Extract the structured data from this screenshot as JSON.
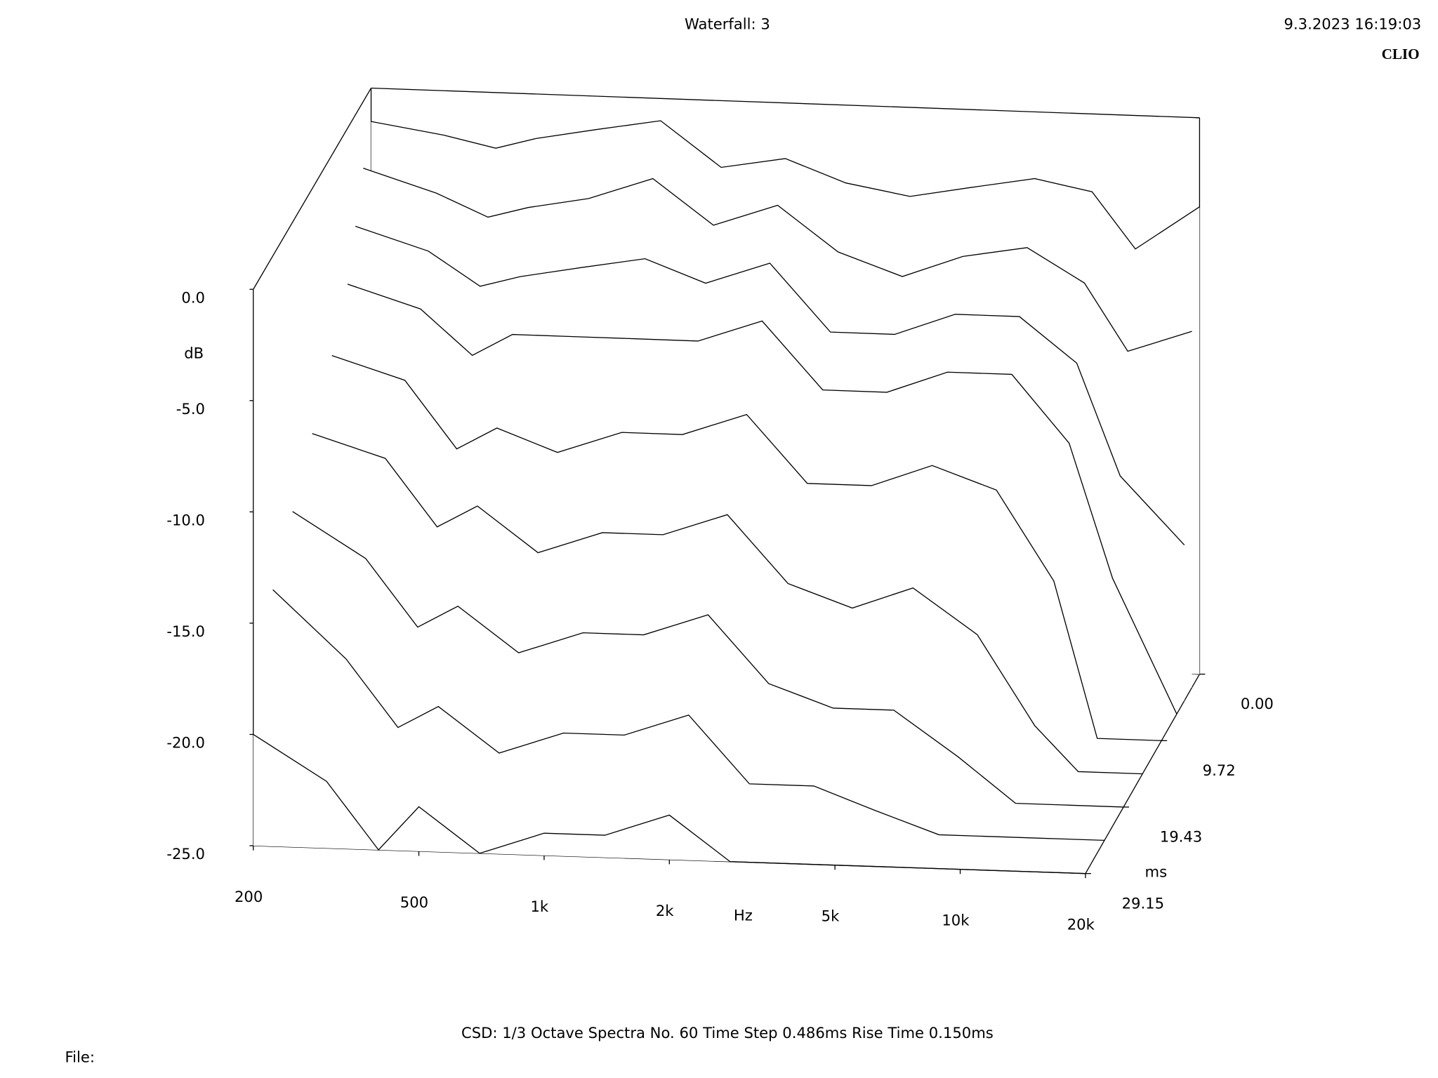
{
  "chart_data": {
    "type": "waterfall",
    "title": "Waterfall: 3",
    "timestamp": "9.3.2023 16:19:03",
    "brand": "CLIO",
    "x_label": "Hz",
    "y_label": "dB",
    "z_label": "ms",
    "footer": "CSD:   1/3 Octave   Spectra No. 60   Time Step 0.486ms   Rise Time 0.150ms",
    "file_label": "File:",
    "color": "#000000",
    "xscale": "log",
    "xlim": [
      200,
      20000
    ],
    "xticks": [
      200,
      500,
      {
        "value": 1000,
        "label": "1k"
      },
      {
        "value": 2000,
        "label": "2k"
      },
      {
        "value": 5000,
        "label": "5k"
      },
      {
        "value": 10000,
        "label": "10k"
      },
      {
        "value": 20000,
        "label": "20k"
      }
    ],
    "ylim": [
      -25,
      0
    ],
    "yticks": [
      {
        "value": 0,
        "label": "0.0"
      },
      {
        "value": -5,
        "label": "-5.0"
      },
      {
        "value": -10,
        "label": "-10.0"
      },
      {
        "value": -15,
        "label": "-15.0"
      },
      {
        "value": -20,
        "label": "-20.0"
      },
      {
        "value": -25,
        "label": "-25.0"
      }
    ],
    "zlim": [
      0,
      29.15
    ],
    "zticks": [
      {
        "value": 0,
        "label": "0.00"
      },
      9.72,
      19.43,
      29.15
    ],
    "x": [
      200,
      300,
      400,
      500,
      700,
      1000,
      1400,
      2000,
      2800,
      4000,
      5600,
      8000,
      11000,
      14000,
      20000
    ],
    "series": [
      {
        "z": 0,
        "values": [
          -1.5,
          -2,
          -2.5,
          -2,
          -1.5,
          -1,
          -3,
          -2.5,
          -3.5,
          -4,
          -3.5,
          -3,
          -3.5,
          -6,
          -4
        ]
      },
      {
        "z": 1.94,
        "values": [
          -3,
          -4,
          -5,
          -4.5,
          -4,
          -3,
          -5,
          -4,
          -6,
          -7,
          -6,
          -5.5,
          -7,
          -10,
          -9
        ]
      },
      {
        "z": 3.89,
        "values": [
          -5,
          -6,
          -7.5,
          -7,
          -6.5,
          -6,
          -7,
          -6,
          -9,
          -9,
          -8,
          -8,
          -10,
          -15,
          -18
        ]
      },
      {
        "z": 5.83,
        "values": [
          -7,
          -8,
          -10,
          -9,
          -9,
          -9,
          -9,
          -8,
          -11,
          -11,
          -10,
          -10,
          -13,
          -19,
          -25
        ]
      },
      {
        "z": 9.72,
        "values": [
          -9,
          -10,
          -13,
          -12,
          -13,
          -12,
          -12,
          -11,
          -14,
          -14,
          -13,
          -14,
          -18,
          -25,
          -25
        ]
      },
      {
        "z": 14.58,
        "values": [
          -11,
          -12,
          -15,
          -14,
          -16,
          -15,
          -15,
          -14,
          -17,
          -18,
          -17,
          -19,
          -23,
          -25,
          -25
        ]
      },
      {
        "z": 19.43,
        "values": [
          -13,
          -15,
          -18,
          -17,
          -19,
          -18,
          -18,
          -17,
          -20,
          -21,
          -21,
          -23,
          -25,
          -25,
          -25
        ]
      },
      {
        "z": 24.3,
        "values": [
          -15,
          -18,
          -21,
          -20,
          -22,
          -21,
          -21,
          -20,
          -23,
          -23,
          -24,
          -25,
          -25,
          -25,
          -25
        ]
      },
      {
        "z": 29.15,
        "values": [
          -20,
          -22,
          -25,
          -23,
          -25,
          -24,
          -24,
          -23,
          -25,
          -25,
          -25,
          -25,
          -25,
          -25,
          -25
        ]
      }
    ]
  }
}
